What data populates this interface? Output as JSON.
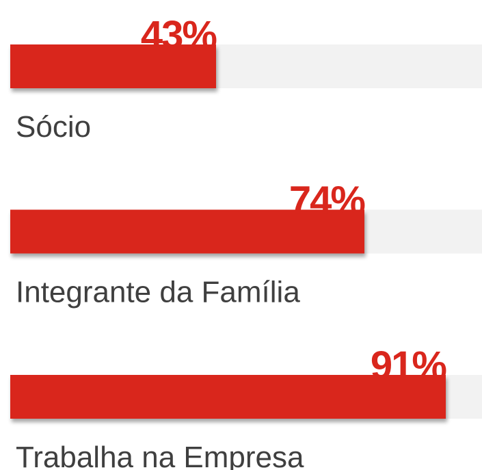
{
  "chart_data": {
    "type": "bar",
    "orientation": "horizontal",
    "categories": [
      "Sócio",
      "Integrante da Família",
      "Trabalha na Empresa"
    ],
    "values": [
      43,
      74,
      91
    ],
    "value_labels": [
      "43%",
      "74%",
      "91%"
    ],
    "color": "#d9261c",
    "xlim": [
      0,
      100
    ]
  }
}
